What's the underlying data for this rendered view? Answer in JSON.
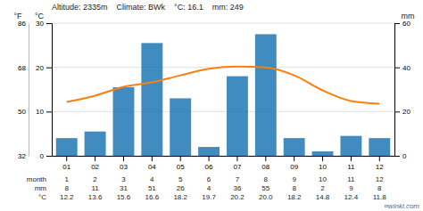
{
  "chart_data": {
    "type": "bar",
    "title": "Altitude: 2335m    Climate: BWk    °C: 16.1    mm: 249",
    "categories": [
      "01",
      "02",
      "03",
      "04",
      "05",
      "06",
      "07",
      "08",
      "09",
      "10",
      "11",
      "12"
    ],
    "series": [
      {
        "type": "bar",
        "axis": "y2",
        "values": [
          8,
          11,
          31,
          51,
          26,
          4,
          36,
          55,
          8,
          2,
          9,
          8
        ]
      },
      {
        "type": "line",
        "values": [
          12.2,
          13.6,
          15.6,
          16.6,
          18.2,
          19.7,
          20.2,
          20.0,
          18.2,
          14.8,
          12.4,
          11.8
        ]
      }
    ],
    "ylim": [
      0,
      30
    ],
    "yticks": [
      0,
      10,
      20,
      30
    ],
    "y_label": "°C",
    "y2lim": [
      0,
      60
    ],
    "y2ticks": [
      0,
      20,
      40,
      60
    ],
    "y2_label": "mm",
    "y3lim": [
      32,
      86
    ],
    "y3ticks": [
      32,
      50,
      68,
      86
    ],
    "y3_label": "°F",
    "grid": true,
    "table": [
      {
        "label": "month",
        "values": [
          1,
          2,
          3,
          4,
          5,
          6,
          7,
          8,
          9,
          10,
          11,
          12
        ]
      },
      {
        "label": "mm",
        "values": [
          8,
          11,
          31,
          51,
          26,
          4,
          36,
          55,
          8,
          2,
          9,
          8
        ]
      },
      {
        "label": "°C",
        "values": [
          12.2,
          13.6,
          15.6,
          16.6,
          18.2,
          19.7,
          20.2,
          20.0,
          18.2,
          14.8,
          12.4,
          11.8
        ],
        "value_labels": [
          "12.2",
          "13.6",
          "15.6",
          "16.6",
          "18.2",
          "19.7",
          "20.2",
          "20.0",
          "18.2",
          "14.8",
          "12.4",
          "11.8"
        ]
      }
    ],
    "annotations": [
      {
        "text": "¤winkl.com"
      }
    ]
  }
}
